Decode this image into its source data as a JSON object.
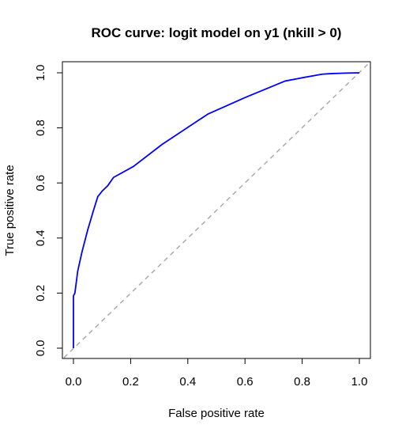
{
  "chart_data": {
    "type": "line",
    "title": "ROC curve: logit model on y1 (nkill > 0)",
    "xlabel": "False positive rate",
    "ylabel": "True positive rate",
    "xlim": [
      0.0,
      1.0
    ],
    "ylim": [
      0.0,
      1.0
    ],
    "xticks": [
      "0.0",
      "0.2",
      "0.4",
      "0.6",
      "0.8",
      "1.0"
    ],
    "yticks": [
      "0.0",
      "0.2",
      "0.4",
      "0.6",
      "0.8",
      "1.0"
    ],
    "grid": false,
    "legend": "none",
    "series": [
      {
        "color": "#0000ff",
        "x": [
          0.0,
          0.0,
          0.005,
          0.01,
          0.015,
          0.03,
          0.05,
          0.07,
          0.085,
          0.1,
          0.11,
          0.12,
          0.14,
          0.21,
          0.31,
          0.47,
          0.6,
          0.74,
          0.79,
          0.87,
          0.9,
          0.95,
          1.0
        ],
        "y": [
          0.0,
          0.19,
          0.2,
          0.24,
          0.28,
          0.35,
          0.43,
          0.5,
          0.55,
          0.57,
          0.58,
          0.59,
          0.62,
          0.66,
          0.74,
          0.85,
          0.91,
          0.97,
          0.98,
          0.995,
          0.997,
          0.999,
          1.0
        ]
      }
    ],
    "reference_line": {
      "x": [
        0.0,
        1.0
      ],
      "y": [
        0.0,
        1.0
      ],
      "color": "#aaaaaa",
      "style": "dashed"
    }
  }
}
